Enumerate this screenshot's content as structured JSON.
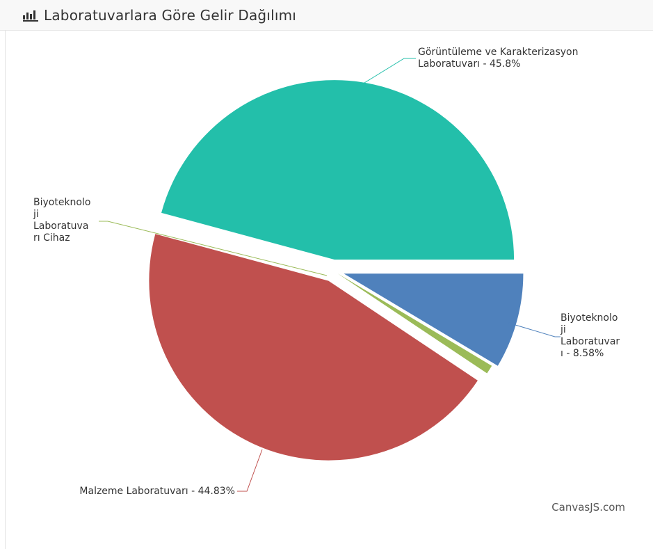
{
  "header": {
    "icon": "bar-chart-icon",
    "title": "Laboratuvarlara Göre Gelir Dağılımı"
  },
  "chart_data": {
    "type": "pie",
    "title": "",
    "slices": [
      {
        "name": "Görüntüleme ve Karakterizasyon Laboratuvarı",
        "value": 45.8,
        "color": "#23bfaa",
        "label_lines": [
          "Görüntüleme ve Karakterizasyon",
          "Laboratuvarı - 45.8%"
        ]
      },
      {
        "name": "Biyoteknoloji Laboratuvarı",
        "value": 8.58,
        "color": "#4f81bc",
        "label_lines": [
          "Biyoteknolo",
          "ji",
          "Laboratuvar",
          "ı - 8.58%"
        ]
      },
      {
        "name": "Malzeme Laboratuvarı",
        "value": 44.83,
        "color": "#c0504e",
        "label_lines": [
          "Malzeme Laboratuvarı - 44.83%"
        ]
      },
      {
        "name": "Biyoteknoloji Laboratuvarı Cihaz",
        "value": 0.79,
        "color": "#9bbb58",
        "label_lines": [
          "Biyoteknolo",
          "ji",
          "Laboratuva",
          "rı Cihaz"
        ]
      }
    ],
    "start_angle_deg": 0,
    "exploded": true
  },
  "credit": "CanvasJS.com"
}
